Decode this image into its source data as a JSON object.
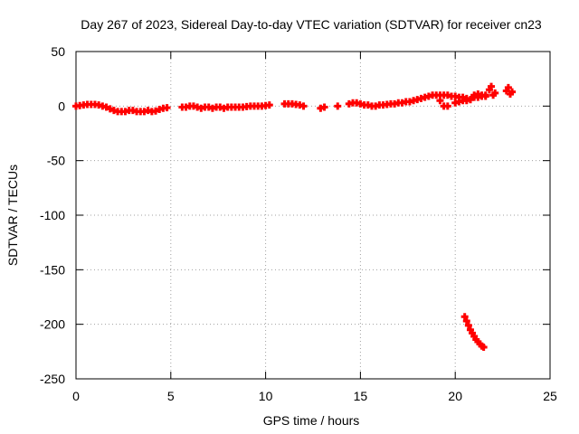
{
  "chart_data": {
    "type": "scatter",
    "title": "Day 267 of 2023, Sidereal Day-to-day VTEC variation (SDTVAR) for receiver cn23",
    "xlabel": "GPS time / hours",
    "ylabel": "SDTVAR / TECUs",
    "xlim": [
      0,
      25
    ],
    "ylim": [
      -250,
      50
    ],
    "xticks": [
      0,
      5,
      10,
      15,
      20,
      25
    ],
    "yticks": [
      -250,
      -200,
      -150,
      -100,
      -50,
      0,
      50
    ],
    "grid": true,
    "marker": "+",
    "series": [
      {
        "name": "SDTVAR",
        "color": "#ff0000",
        "points": [
          [
            0.0,
            0
          ],
          [
            0.2,
            0.5
          ],
          [
            0.4,
            1
          ],
          [
            0.6,
            1.5
          ],
          [
            0.8,
            1.5
          ],
          [
            1.0,
            1.5
          ],
          [
            1.2,
            1
          ],
          [
            1.4,
            0
          ],
          [
            1.6,
            -1
          ],
          [
            1.8,
            -2.5
          ],
          [
            2.0,
            -4
          ],
          [
            2.2,
            -5
          ],
          [
            2.4,
            -5
          ],
          [
            2.6,
            -5
          ],
          [
            2.8,
            -4
          ],
          [
            3.0,
            -4
          ],
          [
            3.2,
            -5
          ],
          [
            3.4,
            -5
          ],
          [
            3.6,
            -5
          ],
          [
            3.8,
            -4
          ],
          [
            4.0,
            -5
          ],
          [
            4.2,
            -4.5
          ],
          [
            4.4,
            -3
          ],
          [
            4.6,
            -2
          ],
          [
            4.8,
            -1.5
          ],
          [
            5.6,
            -1
          ],
          [
            5.8,
            -1
          ],
          [
            6.0,
            0
          ],
          [
            6.2,
            0
          ],
          [
            6.4,
            -1
          ],
          [
            6.6,
            -2
          ],
          [
            6.8,
            -1
          ],
          [
            7.0,
            -1
          ],
          [
            7.2,
            -2
          ],
          [
            7.4,
            -1
          ],
          [
            7.6,
            -1
          ],
          [
            7.8,
            -2
          ],
          [
            8.0,
            -1
          ],
          [
            8.2,
            -1
          ],
          [
            8.4,
            -1
          ],
          [
            8.6,
            -1
          ],
          [
            8.8,
            -1
          ],
          [
            9.0,
            -0.5
          ],
          [
            9.2,
            0
          ],
          [
            9.4,
            0
          ],
          [
            9.6,
            0
          ],
          [
            9.8,
            0
          ],
          [
            10.0,
            0.5
          ],
          [
            10.2,
            1
          ],
          [
            11.0,
            2
          ],
          [
            11.2,
            2
          ],
          [
            11.4,
            2
          ],
          [
            11.6,
            1.5
          ],
          [
            11.8,
            1
          ],
          [
            12.0,
            0
          ],
          [
            12.9,
            -2
          ],
          [
            13.1,
            -1
          ],
          [
            13.8,
            0
          ],
          [
            14.4,
            2
          ],
          [
            14.6,
            3
          ],
          [
            14.8,
            3
          ],
          [
            15.0,
            2
          ],
          [
            15.2,
            1
          ],
          [
            15.4,
            1
          ],
          [
            15.6,
            0
          ],
          [
            15.8,
            0
          ],
          [
            16.0,
            1
          ],
          [
            16.2,
            1
          ],
          [
            16.4,
            1.5
          ],
          [
            16.6,
            2
          ],
          [
            16.8,
            2
          ],
          [
            17.0,
            3
          ],
          [
            17.2,
            3
          ],
          [
            17.4,
            4
          ],
          [
            17.6,
            4
          ],
          [
            17.8,
            5
          ],
          [
            18.0,
            6
          ],
          [
            18.2,
            7
          ],
          [
            18.4,
            8
          ],
          [
            18.6,
            9
          ],
          [
            18.8,
            10
          ],
          [
            19.0,
            10
          ],
          [
            19.2,
            10
          ],
          [
            19.4,
            10
          ],
          [
            19.6,
            10
          ],
          [
            19.8,
            9
          ],
          [
            20.0,
            9
          ],
          [
            20.2,
            8
          ],
          [
            20.4,
            8
          ],
          [
            20.6,
            7
          ],
          [
            20.8,
            6
          ],
          [
            21.0,
            8
          ],
          [
            21.2,
            8
          ],
          [
            21.4,
            9
          ],
          [
            21.6,
            9
          ],
          [
            19.2,
            5
          ],
          [
            19.4,
            0
          ],
          [
            19.6,
            0
          ],
          [
            20.0,
            3
          ],
          [
            20.2,
            4
          ],
          [
            20.4,
            5
          ],
          [
            20.6,
            5
          ],
          [
            20.8,
            6
          ],
          [
            21.0,
            10
          ],
          [
            21.2,
            11
          ],
          [
            21.4,
            10
          ],
          [
            21.6,
            10
          ],
          [
            21.8,
            15
          ],
          [
            21.9,
            18
          ],
          [
            22.0,
            10
          ],
          [
            22.1,
            12
          ],
          [
            22.7,
            14
          ],
          [
            22.8,
            17
          ],
          [
            22.9,
            11
          ],
          [
            23.0,
            13
          ],
          [
            20.5,
            -193
          ],
          [
            20.6,
            -197
          ],
          [
            20.7,
            -201
          ],
          [
            20.8,
            -205
          ],
          [
            20.9,
            -208
          ],
          [
            21.0,
            -211
          ],
          [
            21.1,
            -214
          ],
          [
            21.2,
            -216
          ],
          [
            21.3,
            -218
          ],
          [
            21.4,
            -220
          ],
          [
            21.5,
            -221
          ]
        ]
      }
    ]
  }
}
